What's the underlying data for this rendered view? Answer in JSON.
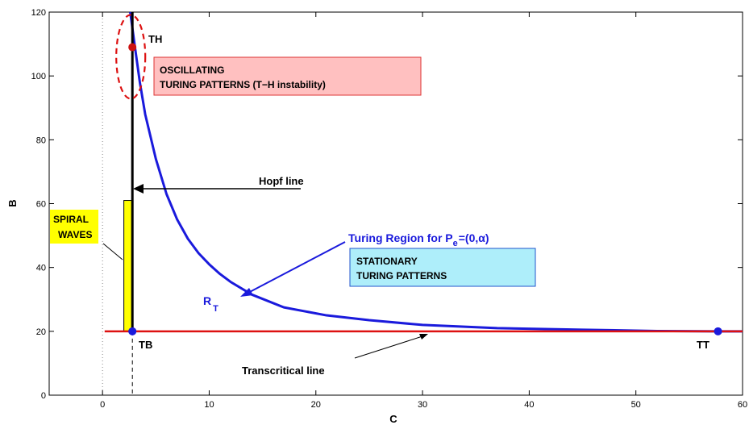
{
  "chart_data": {
    "type": "line",
    "xlabel": "C",
    "ylabel": "B",
    "xlim": [
      -5,
      60
    ],
    "ylim": [
      0,
      120
    ],
    "xticks": [
      0,
      10,
      20,
      30,
      40,
      50,
      60
    ],
    "yticks": [
      0,
      20,
      40,
      60,
      80,
      100,
      120
    ],
    "x_tick_labels": [
      "0",
      "10",
      "20",
      "30",
      "40",
      "50",
      "60"
    ],
    "y_tick_labels": [
      "0",
      "20",
      "40",
      "60",
      "80",
      "100",
      "120"
    ],
    "grid": false,
    "series": [
      {
        "color": "#1a1adc",
        "x": [
          2.6,
          3.0,
          3.5,
          4.0,
          5.0,
          6.0,
          7.0,
          8.0,
          9.0,
          10.0,
          11.0,
          12.0,
          14.0,
          17.0,
          21.0,
          25.0,
          30.0,
          37.0,
          45.0,
          52.0,
          57.7,
          60.0
        ],
        "y": [
          120,
          110,
          98,
          88,
          74,
          63,
          55,
          49,
          44.5,
          41,
          38,
          35.5,
          31.5,
          27.5,
          25,
          23.5,
          22,
          21,
          20.5,
          20.1,
          20,
          20
        ]
      },
      {
        "name": "Transcritical line",
        "color": "#dd1111",
        "x": [
          0.2,
          60
        ],
        "y": [
          20,
          20
        ]
      },
      {
        "name": "Hopf line",
        "color": "#000000",
        "x": [
          2.8,
          2.8
        ],
        "y": [
          20,
          120
        ]
      }
    ],
    "points": [
      {
        "label": "TH",
        "x": 2.8,
        "y": 109,
        "color": "#cc1111"
      },
      {
        "label": "TB",
        "x": 2.8,
        "y": 20,
        "color": "#1a1adc"
      },
      {
        "label": "TT",
        "x": 57.7,
        "y": 20,
        "color": "#1a1adc"
      }
    ],
    "spiral_bar": {
      "x0": 2.0,
      "x1": 2.8,
      "y0": 20,
      "y1": 61,
      "color": "#ffff00"
    },
    "annotations": {
      "th_label": "TH",
      "tb_label": "TB",
      "tt_label": "TT",
      "oscillating_line1": "OSCILLATING",
      "oscillating_line2": "TURING PATTERNS (T−H instability)",
      "hopf_label": "Hopf line",
      "spiral_line1": "SPIRAL",
      "spiral_line2": "WAVES",
      "turing_region_main": "Turing Region for P",
      "turing_region_sub": "e",
      "turing_region_tail": "=(0,α)",
      "stationary_line1": "STATIONARY",
      "stationary_line2": "TURING PATTERNS",
      "rt_main": "R",
      "rt_sub": "T",
      "transcritical_label": "Transcritical line"
    },
    "colors": {
      "oscillating_box_fill": "#ffc0c0",
      "oscillating_box_border": "#dd3333",
      "stationary_box_fill": "#aeeefa",
      "stationary_box_border": "#2255cc",
      "spiral_box_fill": "#ffff00",
      "turing_text": "#1a1adc"
    }
  }
}
